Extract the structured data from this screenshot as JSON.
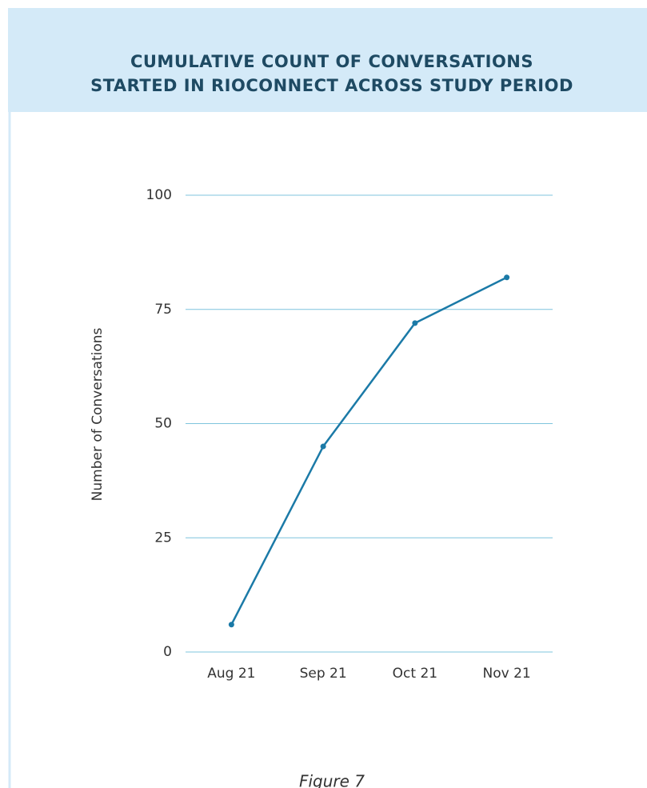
{
  "chart_data": {
    "type": "line",
    "title": [
      "CUMULATIVE COUNT OF CONVERSATIONS",
      "STARTED IN RIOCONNECT ACROSS STUDY PERIOD"
    ],
    "y_label": "Number of Conversations",
    "categories": [
      "Aug 21",
      "Sep 21",
      "Oct 21",
      "Nov 21"
    ],
    "series": [
      {
        "name": "Conversations",
        "color": "#1b7aa7",
        "values": [
          6,
          45,
          72,
          82
        ]
      }
    ],
    "ylim": [
      0,
      100
    ],
    "yticks": [
      0,
      25,
      50,
      75,
      100
    ],
    "grid": true,
    "caption": "Figure 7"
  }
}
